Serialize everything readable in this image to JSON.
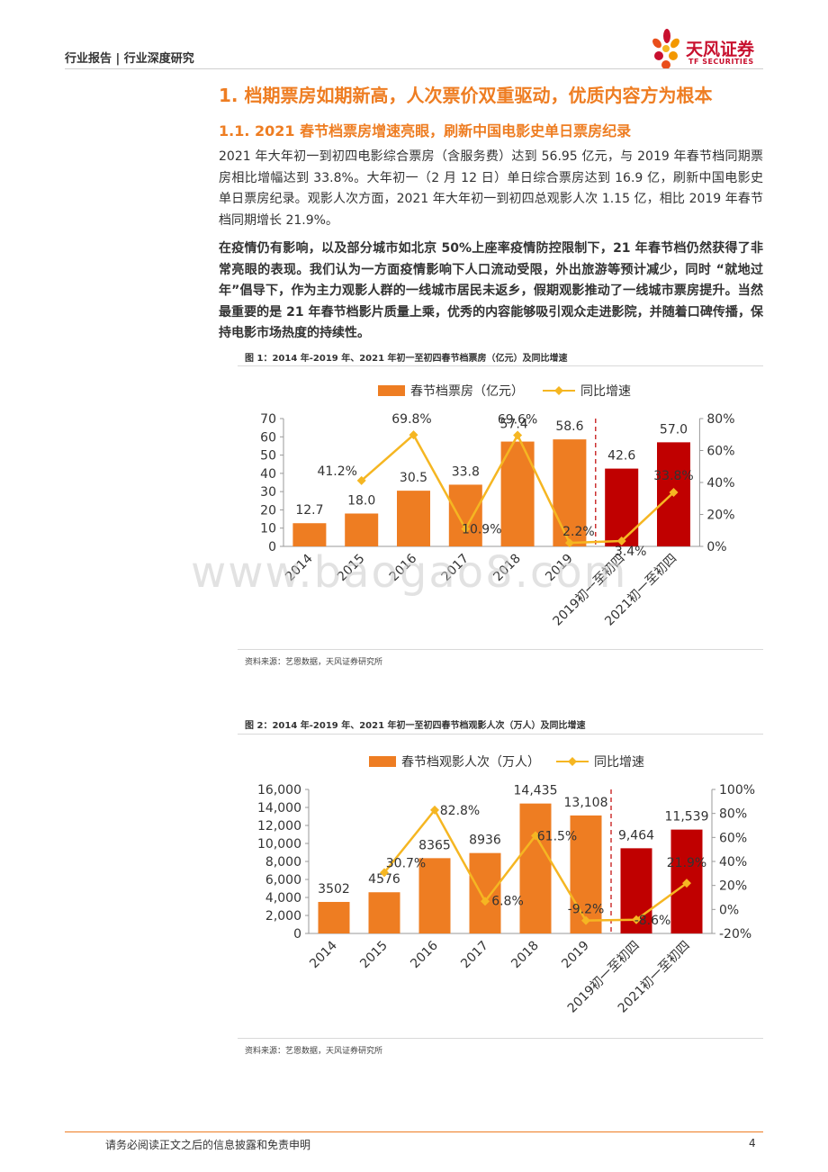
{
  "header": {
    "breadcrumb": "行业报告 | 行业深度研究",
    "logo_cn": "天风证券",
    "logo_en": "TF SECURITIES"
  },
  "section": {
    "h1": "1. 档期票房如期新高，人次票价双重驱动，优质内容方为根本",
    "h2": "1.1. 2021 春节档票房增速亮眼，刷新中国电影史单日票房纪录"
  },
  "paragraphs": {
    "p1": "2021 年大年初一到初四电影综合票房（含服务费）达到 56.95 亿元，与 2019 年春节档同期票房相比增幅达到 33.8%。大年初一（2 月 12 日）单日综合票房达到 16.9 亿，刷新中国电影史单日票房纪录。观影人次方面，2021 年大年初一到初四总观影人次 1.15 亿，相比 2019 年春节档同期增长 21.9%。",
    "p2": "在疫情仍有影响，以及部分城市如北京 50%上座率疫情防控限制下，21 年春节档仍然获得了非常亮眼的表现。我们认为一方面疫情影响下人口流动受限，外出旅游等预计减少，同时 “就地过年”倡导下，作为主力观影人群的一线城市居民未返乡，假期观影推动了一线城市票房提升。当然最重要的是 21 年春节档影片质量上乘，优秀的内容能够吸引观众走进影院，并随着口碑传播，保持电影市场热度的持续性。"
  },
  "figure1": {
    "title": "图 1：2014 年-2019 年、2021 年初一至初四春节档票房（亿元）及同比增速",
    "source": "资料来源：艺恩数据，天风证券研究所"
  },
  "figure2": {
    "title": "图 2：2014 年-2019 年、2021 年初一至初四春节档观影人次（万人）及同比增速",
    "source": "资料来源：艺恩数据，天风证券研究所"
  },
  "chart_data": [
    {
      "type": "bar",
      "categories": [
        "2014",
        "2015",
        "2016",
        "2017",
        "2018",
        "2019",
        "2019初一至初四",
        "2021初一至初四"
      ],
      "series": [
        {
          "name": "春节档票房（亿元）",
          "type": "bar",
          "axis": "left",
          "values": [
            12.7,
            18.0,
            30.5,
            33.8,
            57.4,
            58.6,
            42.6,
            57.0
          ],
          "labels": [
            "12.7",
            "18.0",
            "30.5",
            "33.8",
            "57.4",
            "58.6",
            "42.6",
            "57.0"
          ],
          "colors": [
            "#ee7d22",
            "#ee7d22",
            "#ee7d22",
            "#ee7d22",
            "#ee7d22",
            "#ee7d22",
            "#c00000",
            "#c00000"
          ]
        },
        {
          "name": "同比增速",
          "type": "line",
          "axis": "right",
          "color": "#f5b622",
          "values": [
            null,
            41.2,
            69.8,
            10.9,
            69.6,
            2.2,
            3.4,
            33.8
          ],
          "labels": [
            "",
            "41.2%",
            "69.8%",
            "10.9%",
            "69.6%",
            "2.2%",
            "3.4%",
            "33.8%"
          ]
        }
      ],
      "ylim": [
        0,
        70
      ],
      "y_ticks": [
        "0",
        "10",
        "20",
        "30",
        "40",
        "50",
        "60",
        "70"
      ],
      "y2lim": [
        0,
        80
      ],
      "y2_ticks": [
        "0%",
        "20%",
        "40%",
        "60%",
        "80%"
      ],
      "legend": "top-center",
      "grid": false,
      "separator": "dashed line between 2019 and 2019初一至初四"
    },
    {
      "type": "bar",
      "categories": [
        "2014",
        "2015",
        "2016",
        "2017",
        "2018",
        "2019",
        "2019初一至初四",
        "2021初一至初四"
      ],
      "series": [
        {
          "name": "春节档观影人次（万人）",
          "type": "bar",
          "axis": "left",
          "values": [
            3502,
            4576,
            8365,
            8936,
            14435,
            13108,
            9464,
            11539
          ],
          "labels": [
            "3502",
            "4576",
            "8365",
            "8936",
            "14,435",
            "13,108",
            "9,464",
            "11,539"
          ],
          "colors": [
            "#ee7d22",
            "#ee7d22",
            "#ee7d22",
            "#ee7d22",
            "#ee7d22",
            "#ee7d22",
            "#c00000",
            "#c00000"
          ]
        },
        {
          "name": "同比增速",
          "type": "line",
          "axis": "right",
          "color": "#f5b622",
          "values": [
            null,
            30.7,
            82.8,
            6.8,
            61.5,
            -9.2,
            -8.6,
            21.9
          ],
          "labels": [
            "",
            "30.7%",
            "82.8%",
            "6.8%",
            "61.5%",
            "-9.2%",
            "-8.6%",
            "21.9%"
          ]
        }
      ],
      "ylim": [
        0,
        16000
      ],
      "y_ticks": [
        "0",
        "2,000",
        "4,000",
        "6,000",
        "8,000",
        "10,000",
        "12,000",
        "14,000",
        "16,000"
      ],
      "y2lim": [
        -20,
        100
      ],
      "y2_ticks": [
        "-20%",
        "0%",
        "20%",
        "40%",
        "60%",
        "80%",
        "100%"
      ],
      "legend": "top-center",
      "grid": false,
      "separator": "dashed line between 2019 and 2019初一至初四"
    }
  ],
  "watermark": "www.baogao8.com",
  "footer": {
    "disclaimer": "请务必阅读正文之后的信息披露和免责申明",
    "page_number": "4"
  }
}
